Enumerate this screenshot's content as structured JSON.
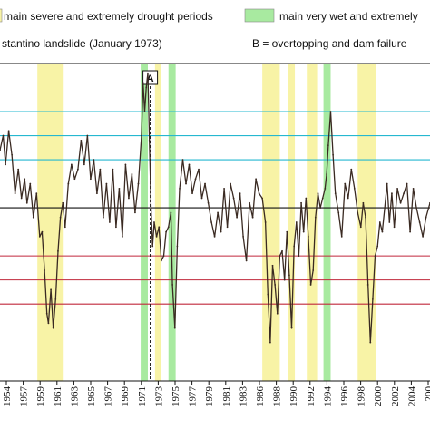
{
  "colors": {
    "drought": "#f8f3a6",
    "wet": "#a8eaa0",
    "series": "#3a2a22",
    "cyan_line": "#26b8d0",
    "red_line": "#c0283c",
    "zero_line": "#111111"
  },
  "legend": {
    "drought_label": "main severe and extremely drought periods",
    "wet_label": "main very wet and extremely",
    "marker_a_label": "stantino landslide (January 1973)",
    "marker_b_label": "B = overtopping and dam failure"
  },
  "chart_data": {
    "type": "line",
    "x_tick_labels": [
      "1954",
      "1957",
      "1959",
      "1961",
      "1963",
      "1965",
      "1967",
      "1969",
      "1971",
      "1973",
      "1975",
      "1977",
      "1979",
      "1981",
      "1983",
      "1986",
      "1988",
      "1990",
      "1992",
      "1994",
      "1996",
      "1998",
      "2000",
      "2002",
      "2004",
      "200"
    ],
    "xlim": [
      1953.9,
      2008.0
    ],
    "ylim": [
      -3.6,
      3.0
    ],
    "threshold_lines": [
      {
        "value": 2.0,
        "color": "cyan"
      },
      {
        "value": 1.5,
        "color": "cyan"
      },
      {
        "value": 1.0,
        "color": "cyan"
      },
      {
        "value": 0.0,
        "color": "black"
      },
      {
        "value": -1.0,
        "color": "red"
      },
      {
        "value": -1.5,
        "color": "red"
      },
      {
        "value": -2.0,
        "color": "red"
      }
    ],
    "drought_periods": [
      [
        1958.6,
        1961.8
      ],
      [
        1973.4,
        1974.2
      ],
      [
        1986.9,
        1989.1
      ],
      [
        1990.1,
        1991.0
      ],
      [
        1992.5,
        1993.8
      ],
      [
        1998.9,
        2001.2
      ]
    ],
    "wet_periods": [
      [
        1971.6,
        1972.5
      ],
      [
        1975.1,
        1976.0
      ],
      [
        1994.6,
        1995.5
      ]
    ],
    "markers": [
      {
        "label": "A",
        "x": 1972.8
      }
    ],
    "series": [
      {
        "x": [
          1953.9,
          1954.3,
          1954.6,
          1955.0,
          1955.4,
          1955.8,
          1956.2,
          1956.6,
          1957.0,
          1957.3,
          1957.7,
          1958.1,
          1958.5,
          1958.9,
          1959.2,
          1959.5,
          1959.8,
          1960.0,
          1960.3,
          1960.6,
          1960.9,
          1961.2,
          1961.5,
          1961.8,
          1962.1,
          1962.5,
          1962.9,
          1963.3,
          1963.7,
          1964.1,
          1964.5,
          1964.9,
          1965.3,
          1965.7,
          1966.1,
          1966.5,
          1966.9,
          1967.3,
          1967.7,
          1968.1,
          1968.5,
          1968.9,
          1969.3,
          1969.7,
          1970.1,
          1970.5,
          1970.9,
          1971.3,
          1971.7,
          1971.9,
          1972.1,
          1972.3,
          1972.5,
          1972.7,
          1972.9,
          1973.1,
          1973.3,
          1973.6,
          1973.9,
          1974.2,
          1974.5,
          1974.8,
          1975.1,
          1975.4,
          1975.6,
          1975.9,
          1976.2,
          1976.5,
          1976.9,
          1977.3,
          1977.7,
          1978.1,
          1978.5,
          1978.9,
          1979.3,
          1979.7,
          1980.1,
          1980.5,
          1980.9,
          1981.3,
          1981.7,
          1982.1,
          1982.5,
          1982.9,
          1983.3,
          1983.7,
          1984.1,
          1984.5,
          1984.9,
          1985.3,
          1985.7,
          1986.1,
          1986.5,
          1986.9,
          1987.3,
          1987.6,
          1987.9,
          1988.2,
          1988.5,
          1988.8,
          1989.1,
          1989.4,
          1989.7,
          1990.0,
          1990.3,
          1990.6,
          1990.9,
          1991.2,
          1991.5,
          1991.8,
          1992.1,
          1992.4,
          1992.7,
          1993.0,
          1993.3,
          1993.6,
          1993.9,
          1994.2,
          1994.5,
          1994.8,
          1995.0,
          1995.2,
          1995.5,
          1995.8,
          1996.1,
          1996.5,
          1996.9,
          1997.3,
          1997.7,
          1998.1,
          1998.5,
          1998.9,
          1999.3,
          1999.6,
          1999.9,
          2000.2,
          2000.5,
          2000.8,
          2001.1,
          2001.4,
          2001.7,
          2002.0,
          2002.3,
          2002.6,
          2002.9,
          2003.2,
          2003.5,
          2003.9,
          2004.3,
          2004.7,
          2005.1,
          2005.5,
          2005.9,
          2006.3,
          2006.7,
          2007.1,
          2007.5,
          2008.0
        ],
        "y": [
          1.2,
          1.5,
          0.9,
          1.6,
          1.1,
          0.3,
          0.8,
          0.2,
          0.6,
          0.1,
          0.5,
          -0.2,
          0.3,
          -0.6,
          -0.5,
          -1.3,
          -2.2,
          -2.4,
          -1.7,
          -2.5,
          -1.9,
          -0.9,
          -0.2,
          0.1,
          -0.4,
          0.5,
          0.9,
          0.6,
          0.8,
          1.4,
          0.9,
          1.5,
          0.6,
          1.0,
          0.3,
          0.8,
          -0.2,
          0.5,
          -0.3,
          0.8,
          -0.4,
          0.4,
          -0.6,
          0.9,
          0.2,
          0.7,
          -0.1,
          0.5,
          1.5,
          2.6,
          2.0,
          2.5,
          2.8,
          1.4,
          0.0,
          -0.8,
          -0.3,
          -0.6,
          -0.4,
          -1.1,
          -1.0,
          -0.5,
          -0.4,
          -0.1,
          -1.6,
          -2.5,
          -0.8,
          0.4,
          1.0,
          0.5,
          0.9,
          0.3,
          0.6,
          0.8,
          0.2,
          0.5,
          0.1,
          -0.3,
          -0.6,
          -0.1,
          -0.5,
          0.4,
          -0.4,
          0.5,
          0.2,
          -0.2,
          0.3,
          -0.6,
          -1.1,
          0.1,
          -0.2,
          0.6,
          0.3,
          0.2,
          -0.3,
          -1.8,
          -2.8,
          -1.2,
          -1.6,
          -2.2,
          -1.0,
          -0.9,
          -1.5,
          -0.5,
          -1.4,
          -2.5,
          -0.8,
          -0.3,
          -1.0,
          0.1,
          -0.5,
          0.2,
          -0.6,
          -1.6,
          -1.3,
          -0.2,
          0.3,
          0.0,
          0.2,
          0.4,
          0.7,
          1.3,
          2.0,
          1.1,
          0.3,
          -0.1,
          -0.6,
          0.5,
          0.2,
          0.8,
          0.4,
          -0.1,
          -0.4,
          0.1,
          -0.2,
          -1.6,
          -2.8,
          -1.9,
          -1.0,
          -0.8,
          -0.3,
          -0.5,
          0.0,
          0.5,
          -0.3,
          0.3,
          -0.4,
          0.4,
          0.1,
          0.3,
          0.5,
          -0.5,
          0.4,
          0.0,
          -0.3,
          -0.6,
          -0.2,
          0.1
        ]
      }
    ]
  }
}
